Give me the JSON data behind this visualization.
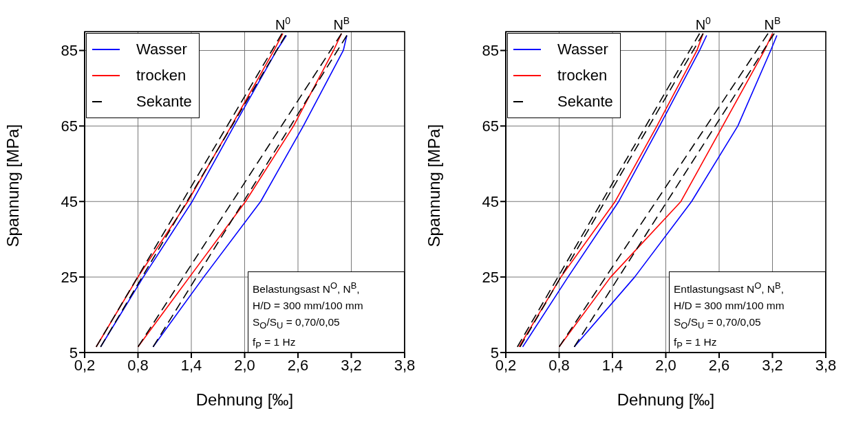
{
  "chart_data": [
    {
      "type": "line",
      "xlabel": "Dehnung [‰]",
      "ylabel": "Spannung [MPa]",
      "xlim": [
        0.2,
        3.8
      ],
      "xticks": [
        {
          "value": 0.2,
          "label": "0,2"
        },
        {
          "value": 0.8,
          "label": "0,8"
        },
        {
          "value": 1.4,
          "label": "1,4"
        },
        {
          "value": 2.0,
          "label": "2,0"
        },
        {
          "value": 2.6,
          "label": "2,6"
        },
        {
          "value": 3.2,
          "label": "3,2"
        },
        {
          "value": 3.8,
          "label": "3,8"
        }
      ],
      "ylim": [
        5,
        90
      ],
      "yticks": [
        5,
        25,
        45,
        65,
        85
      ],
      "grid": true,
      "legend": "top left",
      "annotations": [
        {
          "text": "N$^{0}$",
          "x": 2.43,
          "y": 89.5
        },
        {
          "text": "N$^{B}$",
          "x": 3.09,
          "y": 89.5
        },
        "Belastungsast N$^{O}$, N$^{B}$,",
        "H/D = 300 mm/100 mm",
        "S$_{O}$/S$_{U}$ = 0,70/0,05",
        "f$_{P}$ = 1 Hz"
      ],
      "series": [
        {
          "name": "Wasser",
          "color": "#0000ff",
          "x": [
            0.38,
            0.86,
            1.41,
            1.88,
            2.36,
            2.47
          ],
          "values": [
            6.5,
            25,
            45,
            65,
            85,
            89
          ]
        },
        {
          "name": "trocken",
          "color": "#ff0000",
          "x": [
            0.33,
            0.8,
            1.36,
            1.85,
            2.33,
            2.43
          ],
          "values": [
            6.5,
            25,
            45,
            65,
            85,
            89.5
          ]
        },
        {
          "name": "Sekante",
          "color": "#000000",
          "line_style": "dashed",
          "x": [
            0.33,
            2.42
          ],
          "values": [
            6.5,
            89.5
          ]
        },
        {
          "color": "#000000",
          "line_style": "dashed",
          "x": [
            0.38,
            2.46
          ],
          "values": [
            6.5,
            89
          ]
        },
        {
          "color": "#0000ff",
          "x": [
            0.97,
            1.54,
            2.18,
            2.66,
            3.11,
            3.15
          ],
          "values": [
            6.5,
            25,
            45,
            65,
            85,
            89
          ]
        },
        {
          "color": "#ff0000",
          "x": [
            0.8,
            1.38,
            2.01,
            2.55,
            3.0,
            3.09
          ],
          "values": [
            6.5,
            25,
            45,
            65,
            85,
            89.5
          ]
        },
        {
          "color": "#000000",
          "line_style": "dashed",
          "x": [
            0.8,
            3.09
          ],
          "values": [
            6.5,
            89.5
          ]
        },
        {
          "color": "#000000",
          "line_style": "dashed",
          "x": [
            0.97,
            3.15
          ],
          "values": [
            6.5,
            89
          ]
        }
      ]
    },
    {
      "type": "line",
      "xlabel": "Dehnung [‰]",
      "ylabel": "Spannung [MPa]",
      "xlim": [
        0.2,
        3.8
      ],
      "xticks": [
        {
          "value": 0.2,
          "label": "0,2"
        },
        {
          "value": 0.8,
          "label": "0,8"
        },
        {
          "value": 1.4,
          "label": "1,4"
        },
        {
          "value": 2.0,
          "label": "2,0"
        },
        {
          "value": 2.6,
          "label": "2,6"
        },
        {
          "value": 3.2,
          "label": "3,2"
        },
        {
          "value": 3.8,
          "label": "3,8"
        }
      ],
      "ylim": [
        5,
        90
      ],
      "yticks": [
        5,
        25,
        45,
        65,
        85
      ],
      "grid": true,
      "legend": "top left",
      "annotations": [
        {
          "text": "N$^{0}$",
          "x": 2.42,
          "y": 89.5
        },
        {
          "text": "N$^{B}$",
          "x": 3.2,
          "y": 89.5
        },
        "Entlastungsast N$^{O}$, N$^{B}$,",
        "H/D = 300 mm/100 mm",
        "S$_{O}$/S$_{U}$ = 0,70/0,05",
        "f$_{P}$ = 1 Hz"
      ],
      "series": [
        {
          "name": "Wasser",
          "color": "#0000ff",
          "x": [
            0.39,
            0.9,
            1.47,
            1.93,
            2.38,
            2.46
          ],
          "values": [
            6.5,
            25,
            45,
            65,
            85,
            89
          ]
        },
        {
          "name": "trocken",
          "color": "#ff0000",
          "x": [
            0.35,
            0.82,
            1.43,
            1.9,
            2.35,
            2.42
          ],
          "values": [
            6.5,
            25,
            45,
            65,
            85,
            89.5
          ]
        },
        {
          "name": "Sekante",
          "color": "#000000",
          "line_style": "dashed",
          "x": [
            0.33,
            2.38
          ],
          "values": [
            6.5,
            89.5
          ]
        },
        {
          "color": "#000000",
          "line_style": "dashed",
          "x": [
            0.36,
            2.42
          ],
          "values": [
            6.5,
            89.5
          ]
        },
        {
          "color": "#0000ff",
          "x": [
            0.97,
            1.65,
            2.29,
            2.81,
            3.18,
            3.25
          ],
          "values": [
            6.5,
            25,
            45,
            65,
            85,
            89
          ]
        },
        {
          "color": "#ff0000",
          "x": [
            0.8,
            1.38,
            2.17,
            2.64,
            3.11,
            3.2
          ],
          "values": [
            6.5,
            25,
            45,
            65,
            85,
            89.5
          ]
        },
        {
          "color": "#000000",
          "line_style": "dashed",
          "x": [
            0.8,
            3.15
          ],
          "values": [
            6.5,
            89.5
          ]
        },
        {
          "color": "#000000",
          "line_style": "dashed",
          "x": [
            0.97,
            3.22
          ],
          "values": [
            6.5,
            89.5
          ]
        }
      ]
    }
  ]
}
